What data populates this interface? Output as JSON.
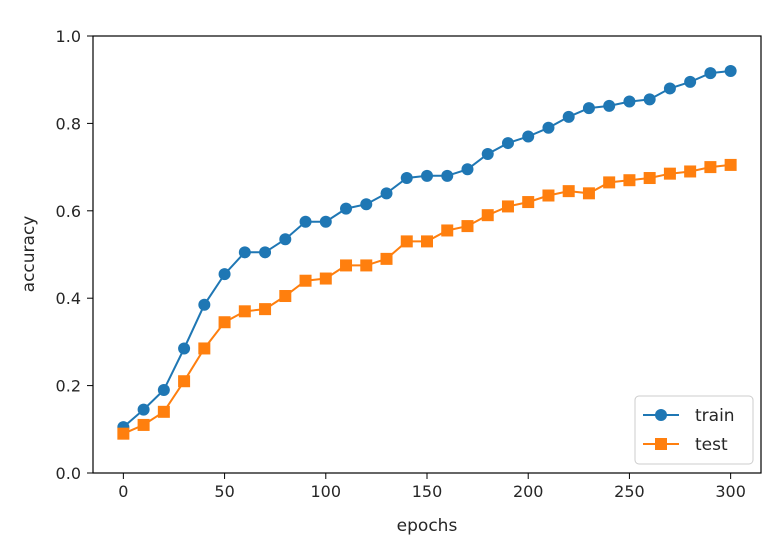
{
  "chart_data": {
    "type": "line",
    "title": "",
    "xlabel": "epochs",
    "ylabel": "accuracy",
    "xlim": [
      -15,
      315
    ],
    "ylim": [
      0,
      1.0
    ],
    "xticks": [
      "0",
      "50",
      "100",
      "150",
      "200",
      "250",
      "300"
    ],
    "yticks": [
      "0.0",
      "0.2",
      "0.4",
      "0.6",
      "0.8",
      "1.0"
    ],
    "grid": false,
    "legend_position": "lower-right",
    "x": [
      0,
      10,
      20,
      30,
      40,
      50,
      60,
      70,
      80,
      90,
      100,
      110,
      120,
      130,
      140,
      150,
      160,
      170,
      180,
      190,
      200,
      210,
      220,
      230,
      240,
      250,
      260,
      270,
      280,
      290,
      300
    ],
    "series": [
      {
        "name": "train",
        "color": "#1f77b4",
        "marker": "circle",
        "values": [
          0.105,
          0.145,
          0.19,
          0.285,
          0.385,
          0.455,
          0.505,
          0.505,
          0.535,
          0.575,
          0.575,
          0.605,
          0.615,
          0.64,
          0.675,
          0.68,
          0.68,
          0.695,
          0.73,
          0.755,
          0.77,
          0.79,
          0.815,
          0.835,
          0.84,
          0.85,
          0.855,
          0.88,
          0.895,
          0.915,
          0.92
        ]
      },
      {
        "name": "test",
        "color": "#ff7f0e",
        "marker": "square",
        "values": [
          0.09,
          0.11,
          0.14,
          0.21,
          0.285,
          0.345,
          0.37,
          0.375,
          0.405,
          0.44,
          0.445,
          0.475,
          0.475,
          0.49,
          0.53,
          0.53,
          0.555,
          0.565,
          0.59,
          0.61,
          0.62,
          0.635,
          0.645,
          0.64,
          0.665,
          0.67,
          0.675,
          0.685,
          0.69,
          0.7,
          0.705
        ]
      }
    ]
  }
}
